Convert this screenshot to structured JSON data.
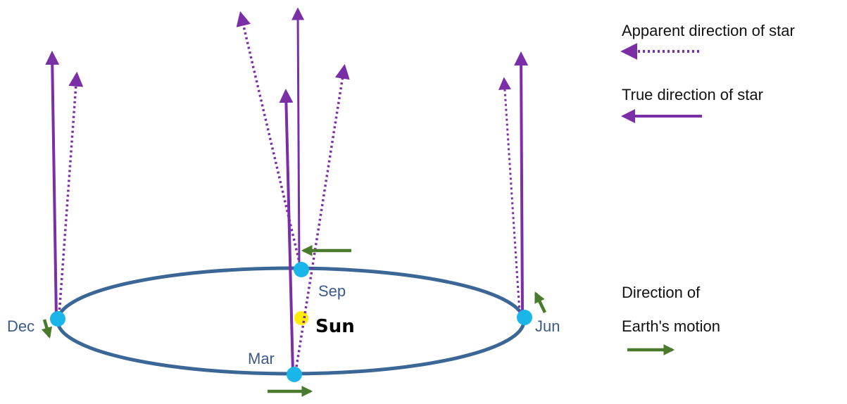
{
  "colors": {
    "orbit": "#3b6796",
    "earth": "#1ab6ea",
    "sun": "#ffee00",
    "star_arrow": "#7a2fa6",
    "motion_arrow": "#4a7a2c",
    "month_label": "#3b5a8a",
    "text": "#111111"
  },
  "diagram": {
    "sun_label": "Sun",
    "positions": [
      {
        "id": "dec",
        "label": "Dec"
      },
      {
        "id": "mar",
        "label": "Mar"
      },
      {
        "id": "jun",
        "label": "Jun"
      },
      {
        "id": "sep",
        "label": "Sep"
      }
    ]
  },
  "legend": {
    "apparent_label": "Apparent direction of star",
    "true_label": "True direction of star",
    "motion_label_line1": "Direction of",
    "motion_label_line2": "Earth's motion"
  }
}
